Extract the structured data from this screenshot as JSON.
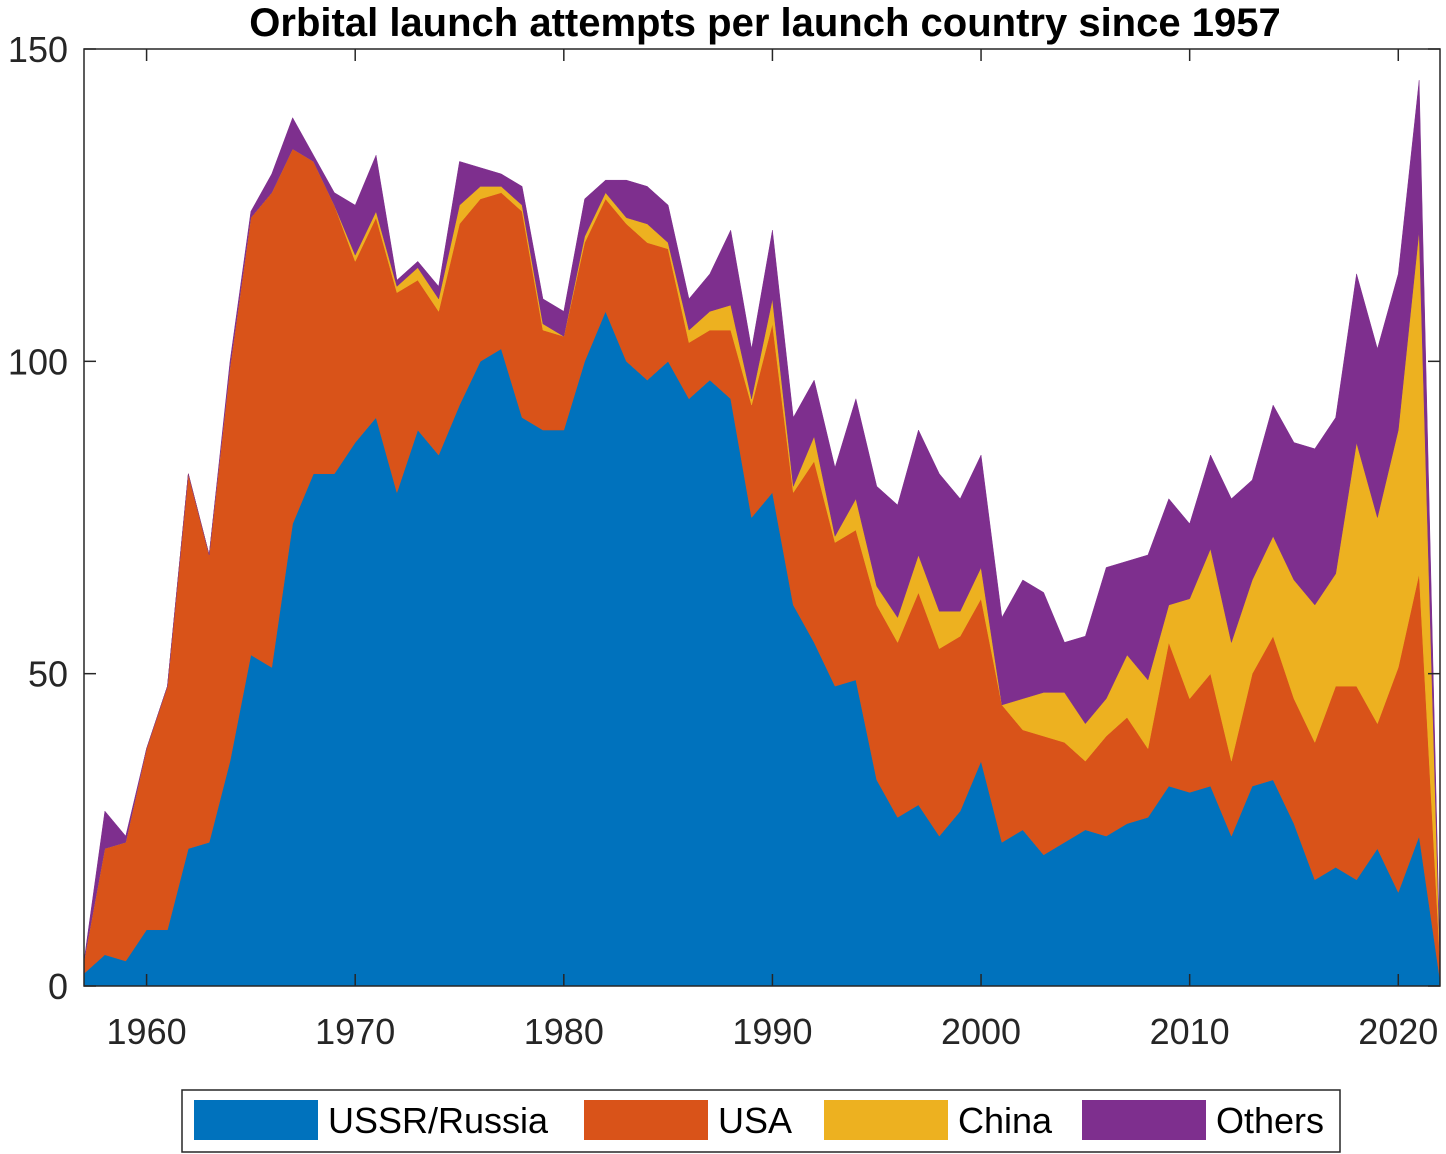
{
  "chart_data": {
    "type": "area",
    "stacked": true,
    "title": "Orbital launch attempts per launch country since 1957",
    "xlabel": "",
    "ylabel": "",
    "xlim": [
      1957,
      2022
    ],
    "ylim": [
      0,
      150
    ],
    "xticks": [
      1960,
      1970,
      1980,
      1990,
      2000,
      2010,
      2020
    ],
    "yticks": [
      0,
      50,
      100,
      150
    ],
    "grid": false,
    "legend_position": "bottom",
    "x": [
      1957,
      1958,
      1959,
      1960,
      1961,
      1962,
      1963,
      1964,
      1965,
      1966,
      1967,
      1968,
      1969,
      1970,
      1971,
      1972,
      1973,
      1974,
      1975,
      1976,
      1977,
      1978,
      1979,
      1980,
      1981,
      1982,
      1983,
      1984,
      1985,
      1986,
      1987,
      1988,
      1989,
      1990,
      1991,
      1992,
      1993,
      1994,
      1995,
      1996,
      1997,
      1998,
      1999,
      2000,
      2001,
      2002,
      2003,
      2004,
      2005,
      2006,
      2007,
      2008,
      2009,
      2010,
      2011,
      2012,
      2013,
      2014,
      2015,
      2016,
      2017,
      2018,
      2019,
      2020,
      2021,
      2022
    ],
    "series": [
      {
        "name": "USSR/Russia",
        "color": "#0072BD",
        "values": [
          2,
          5,
          4,
          9,
          9,
          22,
          23,
          36,
          53,
          51,
          74,
          82,
          82,
          87,
          91,
          79,
          89,
          85,
          93,
          100,
          102,
          91,
          89,
          89,
          100,
          108,
          100,
          97,
          100,
          94,
          97,
          94,
          75,
          79,
          61,
          55,
          48,
          49,
          33,
          27,
          29,
          24,
          28,
          36,
          23,
          25,
          21,
          23,
          25,
          24,
          26,
          27,
          32,
          31,
          32,
          24,
          32,
          33,
          26,
          17,
          19,
          17,
          22,
          15,
          24,
          1
        ]
      },
      {
        "name": "USA",
        "color": "#D95319",
        "values": [
          2,
          17,
          19,
          29,
          39,
          60,
          46,
          63,
          70,
          76,
          60,
          50,
          43,
          29,
          32,
          32,
          24,
          23,
          29,
          26,
          25,
          33,
          16,
          15,
          19,
          18,
          22,
          22,
          18,
          9,
          8,
          11,
          18,
          27,
          18,
          29,
          23,
          24,
          28,
          28,
          34,
          30,
          28,
          26,
          22,
          16,
          19,
          16,
          11,
          16,
          17,
          11,
          23,
          15,
          18,
          12,
          18,
          23,
          20,
          22,
          29,
          31,
          20,
          36,
          42,
          3
        ]
      },
      {
        "name": "China",
        "color": "#EDB120",
        "values": [
          0,
          0,
          0,
          0,
          0,
          0,
          0,
          0,
          0,
          0,
          0,
          0,
          0,
          1,
          1,
          1,
          2,
          2,
          3,
          2,
          1,
          1,
          1,
          0,
          1,
          1,
          1,
          3,
          1,
          2,
          3,
          4,
          1,
          4,
          1,
          4,
          1,
          5,
          3,
          4,
          6,
          6,
          4,
          5,
          0,
          5,
          7,
          8,
          6,
          6,
          10,
          11,
          6,
          16,
          20,
          19,
          15,
          16,
          19,
          22,
          18,
          39,
          33,
          38,
          55,
          0
        ]
      },
      {
        "name": "Others",
        "color": "#7E2F8E",
        "values": [
          0,
          6,
          1,
          0,
          0,
          0,
          0,
          1,
          1,
          3,
          5,
          1,
          2,
          8,
          9,
          1,
          1,
          2,
          7,
          3,
          2,
          3,
          4,
          4,
          6,
          2,
          6,
          6,
          6,
          5,
          6,
          12,
          8,
          11,
          11,
          9,
          11,
          16,
          16,
          18,
          20,
          22,
          18,
          18,
          14,
          19,
          16,
          8,
          14,
          21,
          15,
          20,
          17,
          12,
          15,
          23,
          16,
          21,
          22,
          25,
          25,
          27,
          27,
          25,
          24,
          0
        ]
      }
    ]
  }
}
